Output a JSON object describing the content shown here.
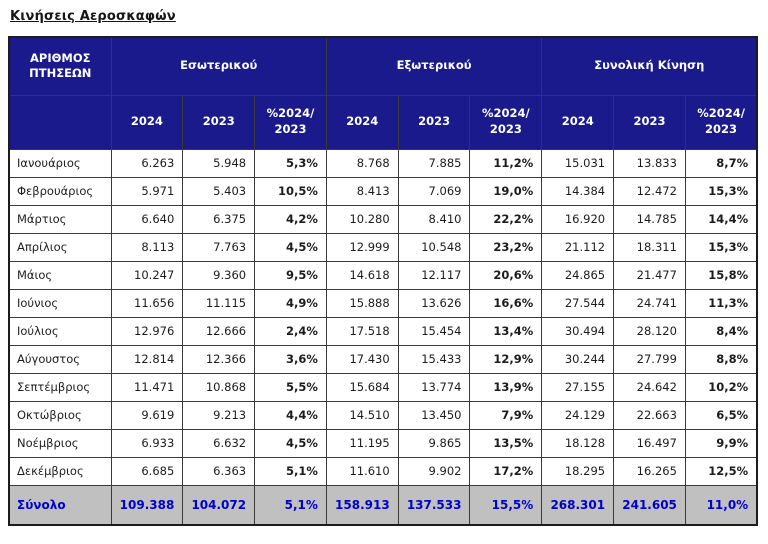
{
  "title": "Κινήσεις Αεροσκαφών",
  "colors": {
    "header_bg": "#1a1a8c",
    "header_text": "#ffffff",
    "total_row_bg": "#c0c0c0",
    "total_row_text": "#0000cd",
    "border": "#3a3a3a"
  },
  "table": {
    "corner_header": "ΑΡΙΘΜΟΣ ΠΤΗΣΕΩΝ",
    "groups": [
      {
        "label": "Εσωτερικού"
      },
      {
        "label": "Εξωτερικού"
      },
      {
        "label": "Συνολική Κίνηση"
      }
    ],
    "sub_headers": [
      "2024",
      "2023",
      "%2024/ 2023"
    ],
    "rows": [
      {
        "month": "Ιανουάριος",
        "values": [
          "6.263",
          "5.948",
          "5,3%",
          "8.768",
          "7.885",
          "11,2%",
          "15.031",
          "13.833",
          "8,7%"
        ]
      },
      {
        "month": "Φεβρουάριος",
        "values": [
          "5.971",
          "5.403",
          "10,5%",
          "8.413",
          "7.069",
          "19,0%",
          "14.384",
          "12.472",
          "15,3%"
        ]
      },
      {
        "month": "Μάρτιος",
        "values": [
          "6.640",
          "6.375",
          "4,2%",
          "10.280",
          "8.410",
          "22,2%",
          "16.920",
          "14.785",
          "14,4%"
        ]
      },
      {
        "month": "Απρίλιος",
        "values": [
          "8.113",
          "7.763",
          "4,5%",
          "12.999",
          "10.548",
          "23,2%",
          "21.112",
          "18.311",
          "15,3%"
        ]
      },
      {
        "month": "Μάιος",
        "values": [
          "10.247",
          "9.360",
          "9,5%",
          "14.618",
          "12.117",
          "20,6%",
          "24.865",
          "21.477",
          "15,8%"
        ]
      },
      {
        "month": "Ιούνιος",
        "values": [
          "11.656",
          "11.115",
          "4,9%",
          "15.888",
          "13.626",
          "16,6%",
          "27.544",
          "24.741",
          "11,3%"
        ]
      },
      {
        "month": "Ιούλιος",
        "values": [
          "12.976",
          "12.666",
          "2,4%",
          "17.518",
          "15.454",
          "13,4%",
          "30.494",
          "28.120",
          "8,4%"
        ]
      },
      {
        "month": "Αύγουστος",
        "values": [
          "12.814",
          "12.366",
          "3,6%",
          "17.430",
          "15.433",
          "12,9%",
          "30.244",
          "27.799",
          "8,8%"
        ]
      },
      {
        "month": "Σεπτέμβριος",
        "values": [
          "11.471",
          "10.868",
          "5,5%",
          "15.684",
          "13.774",
          "13,9%",
          "27.155",
          "24.642",
          "10,2%"
        ]
      },
      {
        "month": "Οκτώβριος",
        "values": [
          "9.619",
          "9.213",
          "4,4%",
          "14.510",
          "13.450",
          "7,9%",
          "24.129",
          "22.663",
          "6,5%"
        ]
      },
      {
        "month": "Νοέμβριος",
        "values": [
          "6.933",
          "6.632",
          "4,5%",
          "11.195",
          "9.865",
          "13,5%",
          "18.128",
          "16.497",
          "9,9%"
        ]
      },
      {
        "month": "Δεκέμβριος",
        "values": [
          "6.685",
          "6.363",
          "5,1%",
          "11.610",
          "9.902",
          "17,2%",
          "18.295",
          "16.265",
          "12,5%"
        ]
      }
    ],
    "total": {
      "label": "Σύνολο",
      "values": [
        "109.388",
        "104.072",
        "5,1%",
        "158.913",
        "137.533",
        "15,5%",
        "268.301",
        "241.605",
        "11,0%"
      ]
    }
  }
}
